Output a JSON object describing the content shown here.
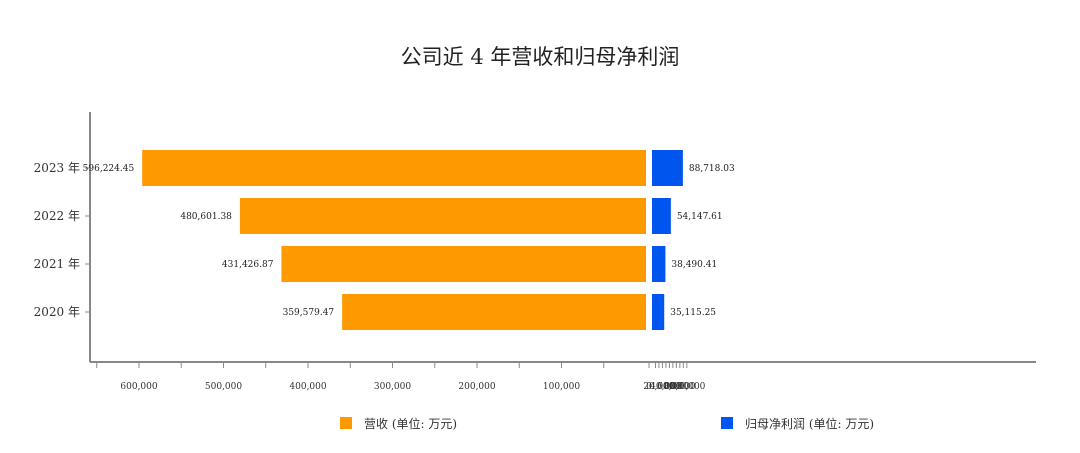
{
  "chart_data": {
    "type": "bar",
    "orientation": "horizontal",
    "layout": "back-to-back",
    "title": "公司近 4 年营收和归母净利润",
    "categories": [
      "2023 年",
      "2022 年",
      "2021 年",
      "2020 年"
    ],
    "series": [
      {
        "name": "营收 (单位: 万元)",
        "color": "#FF9900",
        "side": "left",
        "values": [
          596224.45,
          480601.38,
          431426.87,
          359579.47
        ],
        "labels": [
          "596,224.45",
          "480,601.38",
          "431,426.87",
          "359,579.47"
        ],
        "axis_ticks": [
          "600,000",
          "500,000",
          "400,000",
          "300,000",
          "200,000",
          "100,000",
          "0"
        ],
        "axis_tick_values": [
          600000,
          500000,
          400000,
          300000,
          200000,
          100000,
          0
        ],
        "xlim": [
          0,
          660000
        ]
      },
      {
        "name": "归母净利润 (单位: 万元)",
        "color": "#0055EE",
        "side": "right",
        "values": [
          88718.03,
          54147.61,
          38490.41,
          35115.25
        ],
        "labels": [
          "88,718.03",
          "54,147.61",
          "38,490.41",
          "35,115.25"
        ],
        "axis_ticks": [
          "0",
          "20,000",
          "40,000",
          "60,000",
          "80,000",
          "100,000"
        ],
        "axis_tick_values": [
          0,
          20000,
          40000,
          60000,
          80000,
          100000
        ],
        "xlim": [
          0,
          110000
        ]
      }
    ],
    "legend_position": "bottom",
    "grid": false
  }
}
